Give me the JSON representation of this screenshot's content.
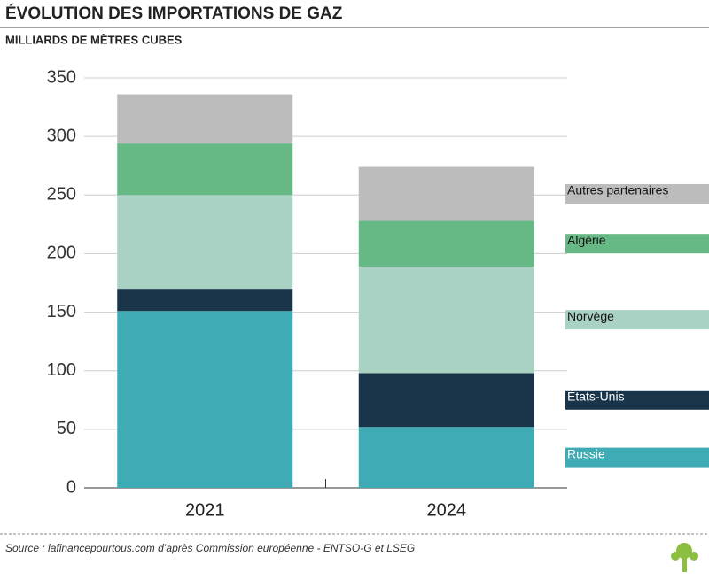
{
  "chart_data": {
    "type": "stacked-bar",
    "title": "ÉVOLUTION DES IMPORTATIONS DE GAZ",
    "subtitle": "MILLIARDS DE MÈTRES CUBES",
    "source": "Source : lafinancepourtous.com d’après Commission européenne - ENTSO-G et LSEG",
    "categories": [
      "2021",
      "2024"
    ],
    "series": [
      {
        "name": "Russie",
        "color": "#3fabb5",
        "values": [
          151,
          52
        ]
      },
      {
        "name": "États-Unis",
        "color": "#1a344a",
        "values": [
          19,
          46
        ]
      },
      {
        "name": "Norvège",
        "color": "#a9d1c4",
        "values": [
          80,
          91
        ]
      },
      {
        "name": "Algérie",
        "color": "#66b985",
        "values": [
          44,
          39
        ]
      },
      {
        "name": "Autres partenaires",
        "color": "#bcbcbc",
        "values": [
          42,
          46
        ]
      }
    ],
    "ylim": [
      0,
      350
    ],
    "yticks": [
      0,
      50,
      100,
      150,
      200,
      250,
      300,
      350
    ],
    "grid": true
  }
}
